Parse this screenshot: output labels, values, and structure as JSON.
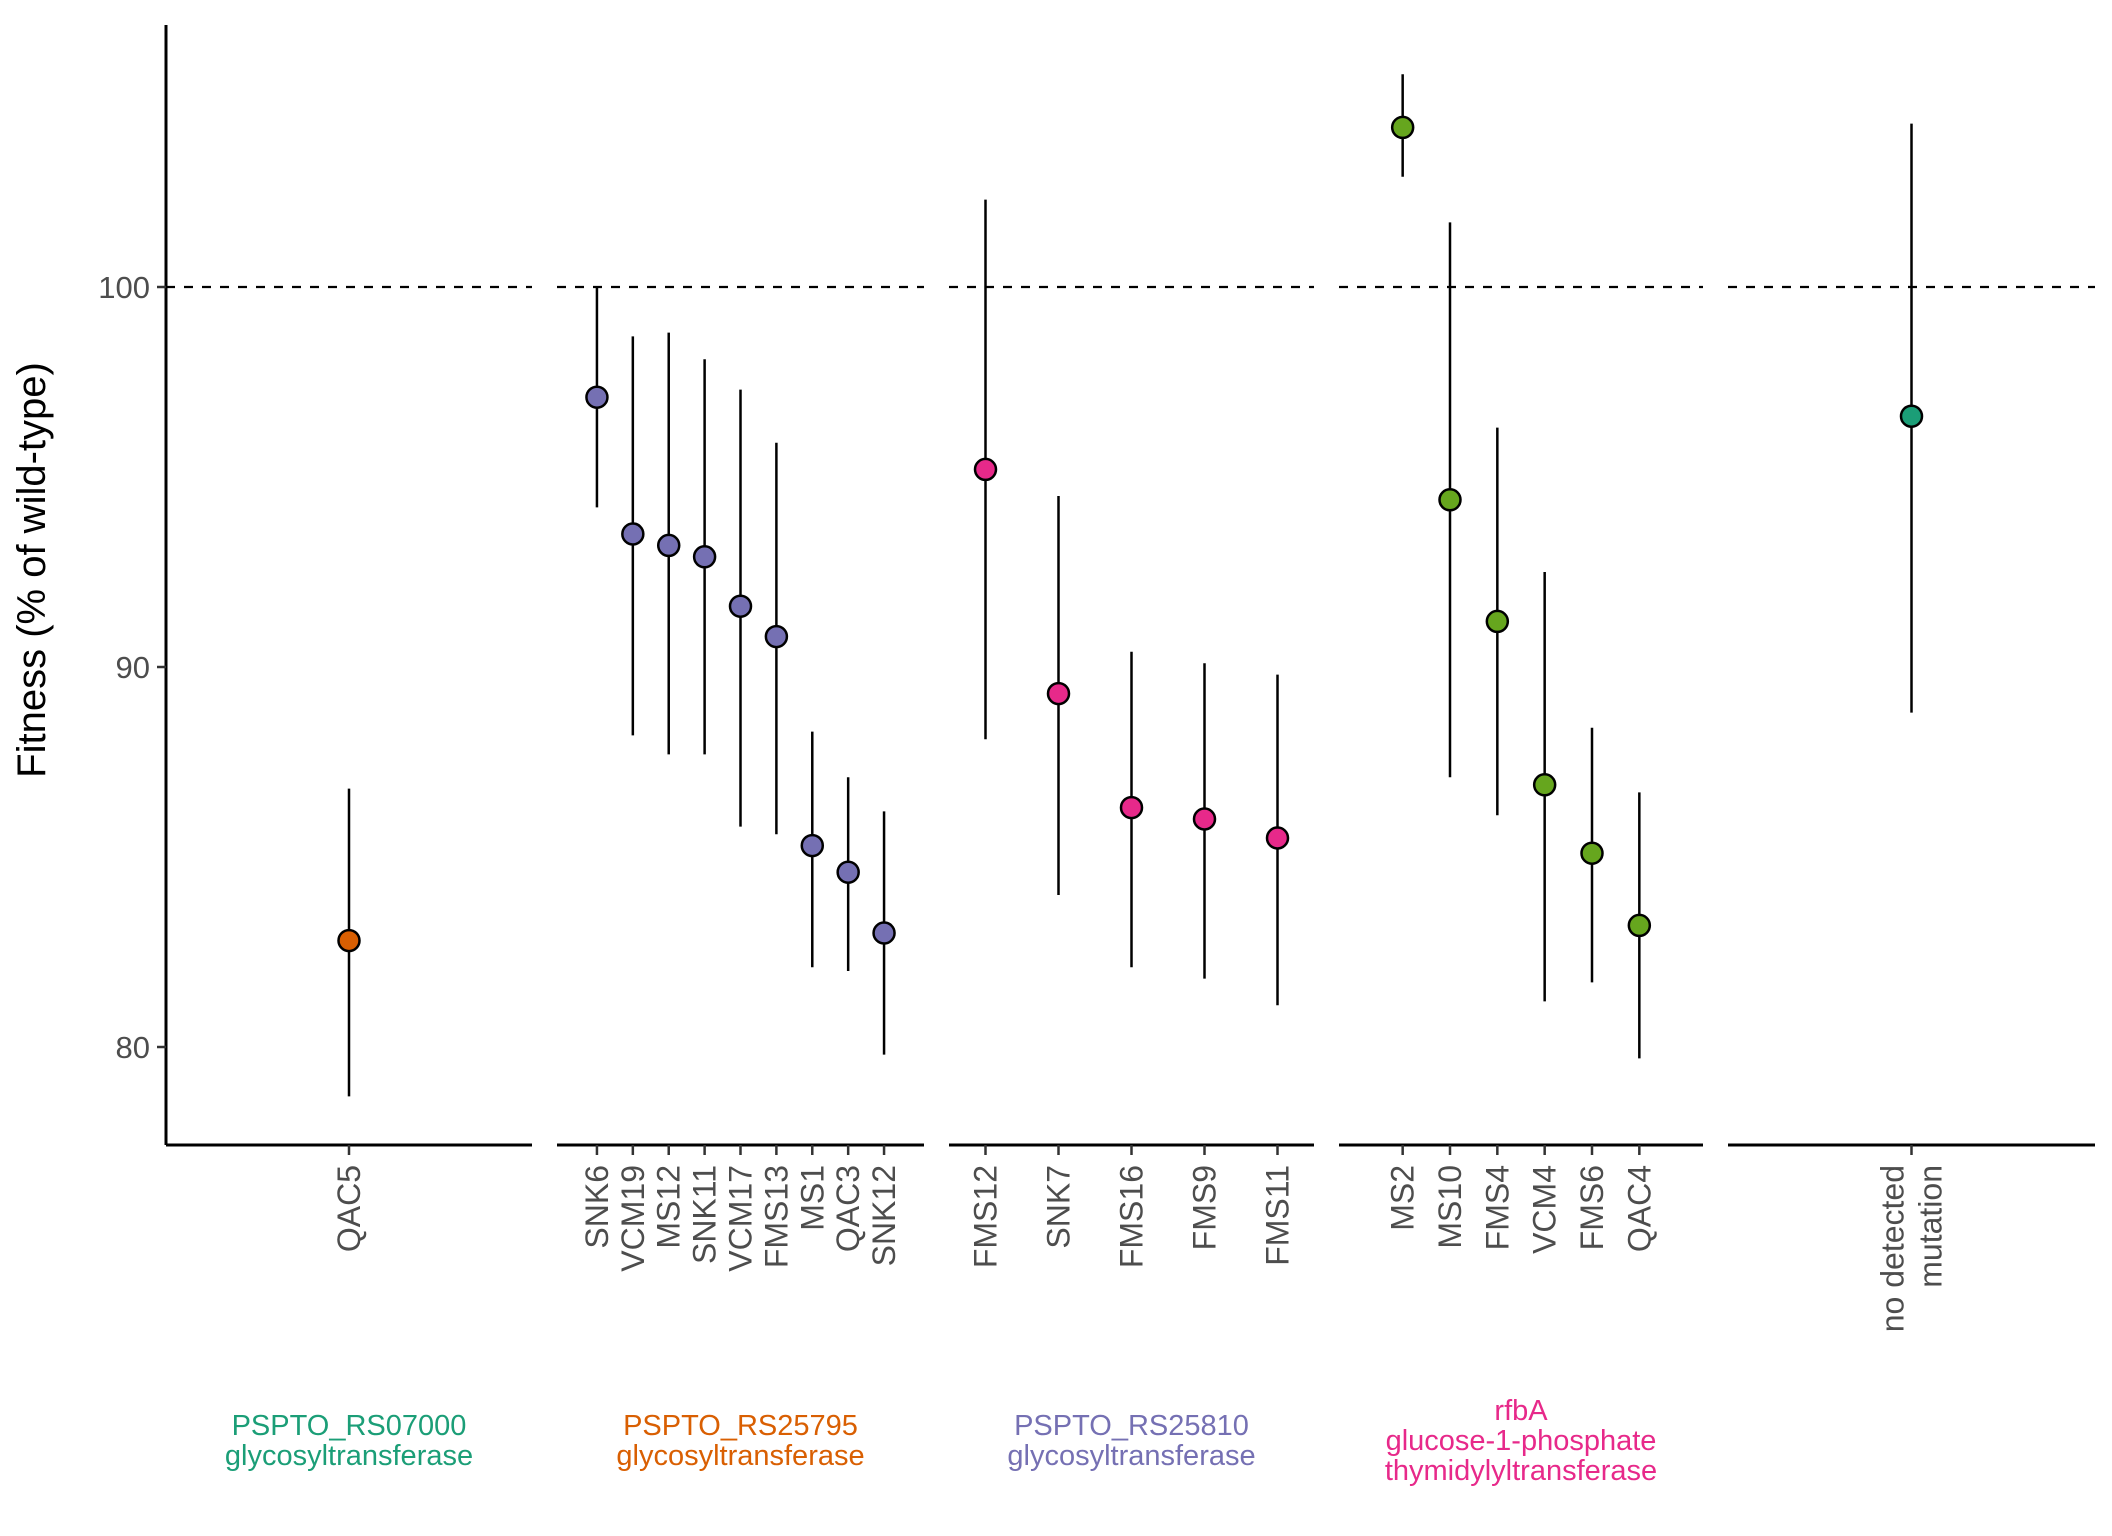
{
  "chart_data": {
    "type": "scatter",
    "ylabel": "Fitness (% of wild-type)",
    "yticks": [
      80,
      90,
      100
    ],
    "ylim": [
      77.5,
      106.9
    ],
    "reference_line": 100,
    "panels": [
      {
        "categories": [
          "QAC5"
        ],
        "points": [
          {
            "label": "QAC5",
            "y": 82.8,
            "ymin": 78.7,
            "ymax": 86.8,
            "color": "#d95f02"
          }
        ]
      },
      {
        "categories": [
          "SNK6",
          "VCM19",
          "MS12",
          "SNK11",
          "VCM17",
          "FMS13",
          "MS1",
          "QAC3",
          "SNK12"
        ],
        "points": [
          {
            "label": "SNK6",
            "y": 97.1,
            "ymin": 94.2,
            "ymax": 100.0,
            "color": "#7570b3"
          },
          {
            "label": "VCM19",
            "y": 93.5,
            "ymin": 88.2,
            "ymax": 98.7,
            "color": "#7570b3"
          },
          {
            "label": "MS12",
            "y": 93.2,
            "ymin": 87.7,
            "ymax": 98.8,
            "color": "#7570b3"
          },
          {
            "label": "SNK11",
            "y": 92.9,
            "ymin": 87.7,
            "ymax": 98.1,
            "color": "#7570b3"
          },
          {
            "label": "VCM17",
            "y": 91.6,
            "ymin": 85.8,
            "ymax": 97.3,
            "color": "#7570b3"
          },
          {
            "label": "FMS13",
            "y": 90.8,
            "ymin": 85.6,
            "ymax": 95.9,
            "color": "#7570b3"
          },
          {
            "label": "MS1",
            "y": 85.3,
            "ymin": 82.1,
            "ymax": 88.3,
            "color": "#7570b3"
          },
          {
            "label": "QAC3",
            "y": 84.6,
            "ymin": 82.0,
            "ymax": 87.1,
            "color": "#7570b3"
          },
          {
            "label": "SNK12",
            "y": 83.0,
            "ymin": 79.8,
            "ymax": 86.2,
            "color": "#7570b3"
          }
        ]
      },
      {
        "categories": [
          "FMS12",
          "SNK7",
          "FMS16",
          "FMS9",
          "FMS11"
        ],
        "points": [
          {
            "label": "FMS12",
            "y": 95.2,
            "ymin": 88.1,
            "ymax": 102.3,
            "color": "#e7298a"
          },
          {
            "label": "SNK7",
            "y": 89.3,
            "ymin": 84.0,
            "ymax": 94.5,
            "color": "#e7298a"
          },
          {
            "label": "FMS16",
            "y": 86.3,
            "ymin": 82.1,
            "ymax": 90.4,
            "color": "#e7298a"
          },
          {
            "label": "FMS9",
            "y": 86.0,
            "ymin": 81.8,
            "ymax": 90.1,
            "color": "#e7298a"
          },
          {
            "label": "FMS11",
            "y": 85.5,
            "ymin": 81.1,
            "ymax": 89.8,
            "color": "#e7298a"
          }
        ]
      },
      {
        "categories": [
          "MS2",
          "MS10",
          "FMS4",
          "VCM4",
          "FMS6",
          "QAC4"
        ],
        "points": [
          {
            "label": "MS2",
            "y": 104.2,
            "ymin": 102.9,
            "ymax": 105.6,
            "color": "#66a61e"
          },
          {
            "label": "MS10",
            "y": 94.4,
            "ymin": 87.1,
            "ymax": 101.7,
            "color": "#66a61e"
          },
          {
            "label": "FMS4",
            "y": 91.2,
            "ymin": 86.1,
            "ymax": 96.3,
            "color": "#66a61e"
          },
          {
            "label": "VCM4",
            "y": 86.9,
            "ymin": 81.2,
            "ymax": 92.5,
            "color": "#66a61e"
          },
          {
            "label": "FMS6",
            "y": 85.1,
            "ymin": 81.7,
            "ymax": 88.4,
            "color": "#66a61e"
          },
          {
            "label": "QAC4",
            "y": 83.2,
            "ymin": 79.7,
            "ymax": 86.7,
            "color": "#66a61e"
          }
        ]
      },
      {
        "categories": [
          "no detected mutation"
        ],
        "label_lines": [
          "no detected",
          "mutation"
        ],
        "points": [
          {
            "label": "no detected mutation",
            "y": 96.6,
            "ymin": 88.8,
            "ymax": 104.3,
            "color": "#1b9e77"
          }
        ]
      }
    ],
    "group_labels": [
      {
        "lines": [
          "PSPTO_RS07000",
          "glycosyltransferase"
        ],
        "color": "#1b9e77"
      },
      {
        "lines": [
          "PSPTO_RS25795",
          "glycosyltransferase"
        ],
        "color": "#d95f02"
      },
      {
        "lines": [
          "PSPTO_RS25810",
          "glycosyltransferase"
        ],
        "color": "#7570b3"
      },
      {
        "lines": [
          "rfbA",
          "glucose-1-phosphate",
          "thymidylyltransferase"
        ],
        "color": "#e7298a"
      }
    ]
  }
}
